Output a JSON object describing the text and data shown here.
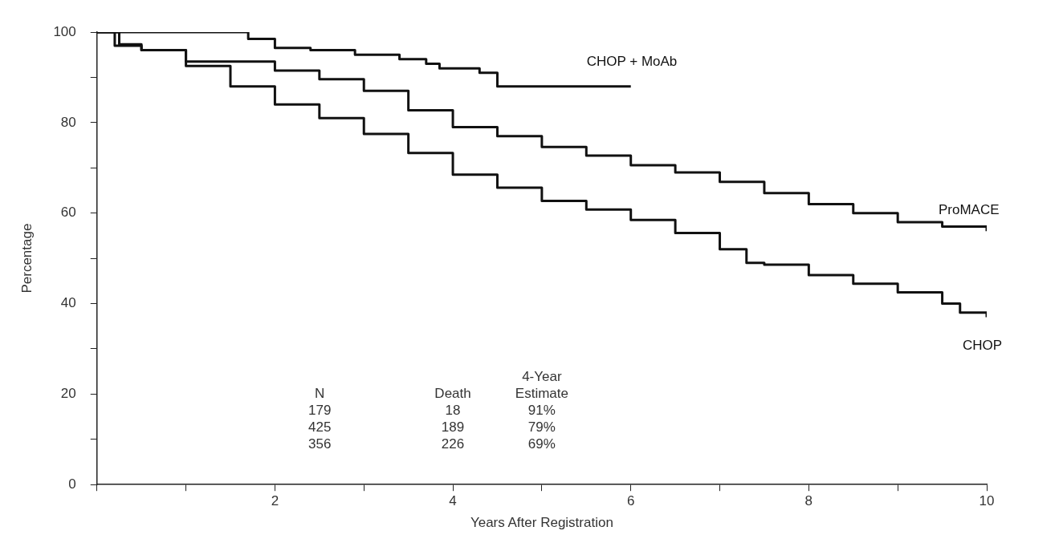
{
  "chart_data": {
    "type": "step",
    "xlabel": "Years After Registration",
    "ylabel": "Percentage",
    "xlim": [
      0,
      10
    ],
    "ylim": [
      0,
      100
    ],
    "xticks": [
      {
        "value": 0,
        "label": null
      },
      {
        "value": 1,
        "label": null
      },
      2,
      {
        "value": 3,
        "label": null
      },
      4,
      {
        "value": 5,
        "label": null
      },
      6,
      {
        "value": 7,
        "label": null
      },
      8,
      {
        "value": 9,
        "label": null
      },
      10
    ],
    "yticks": [
      0,
      {
        "value": 10,
        "label": null
      },
      20,
      {
        "value": 30,
        "label": null
      },
      40,
      {
        "value": 50,
        "label": null
      },
      60,
      {
        "value": 70,
        "label": null
      },
      80,
      {
        "value": 90,
        "label": null
      },
      100
    ],
    "grid": false,
    "legend": false,
    "marker": "none",
    "line_style": "solid",
    "series": [
      {
        "name": "CHOP + MoAb",
        "color": "#111111",
        "x": [
          0,
          1.57,
          1.7,
          2.0,
          2.4,
          2.9,
          3.4,
          3.7,
          3.85,
          4.3,
          4.5,
          6.0
        ],
        "values": [
          100,
          100,
          98.5,
          96.5,
          96,
          95,
          94,
          93,
          92,
          91,
          88,
          88
        ]
      },
      {
        "name": "ProMACE",
        "color": "#111111",
        "x": [
          0,
          0.2,
          0.5,
          1.0,
          2.0,
          2.5,
          3.0,
          3.5,
          4.0,
          4.5,
          5.0,
          5.5,
          6.0,
          6.5,
          7.0,
          7.5,
          8.0,
          8.5,
          9.0,
          9.5,
          10.0
        ],
        "values": [
          100,
          97,
          96,
          93.5,
          91.5,
          89.6,
          87,
          82.7,
          79,
          77,
          74.6,
          72.7,
          70.6,
          69,
          66.9,
          64.4,
          62,
          60,
          58,
          57,
          56
        ]
      },
      {
        "name": "CHOP",
        "color": "#111111",
        "x": [
          0,
          0.25,
          0.5,
          1.0,
          1.5,
          2.0,
          2.5,
          3.0,
          3.5,
          4.0,
          4.5,
          5.0,
          5.5,
          6.0,
          6.5,
          7.0,
          7.3,
          7.5,
          8.0,
          8.5,
          9.0,
          9.5,
          9.7,
          10.0
        ],
        "values": [
          100,
          97.3,
          96,
          92.5,
          88,
          84,
          81,
          77.5,
          73.3,
          68.5,
          65.6,
          62.7,
          60.8,
          58.5,
          55.6,
          52,
          49,
          48.6,
          46.3,
          44.4,
          42.5,
          40,
          38,
          37
        ]
      }
    ],
    "annotations": [
      "N",
      "Death",
      "4-Year Estimate",
      "179",
      "18",
      "91%",
      "425",
      "189",
      "79%",
      "356",
      "226",
      "69%"
    ]
  }
}
